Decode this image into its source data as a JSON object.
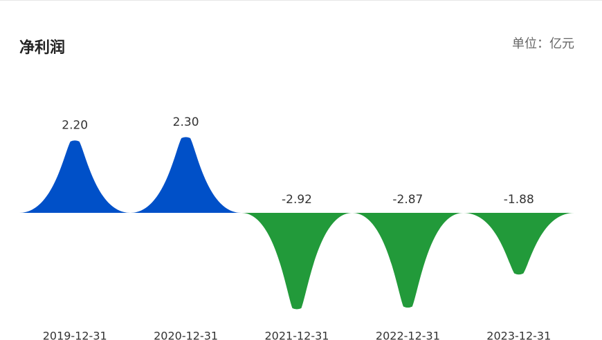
{
  "chart_data": {
    "type": "peak-bar",
    "title": "净利润",
    "unit": "单位：亿元",
    "categories": [
      "2019-12-31",
      "2020-12-31",
      "2021-12-31",
      "2022-12-31",
      "2023-12-31"
    ],
    "values": [
      2.2,
      2.3,
      -2.92,
      -2.87,
      -1.88
    ],
    "value_labels": [
      "2.20",
      "2.30",
      "-2.92",
      "-2.87",
      "-1.88"
    ],
    "color": "#0050c8",
    "negative_color": "#229a3a"
  }
}
